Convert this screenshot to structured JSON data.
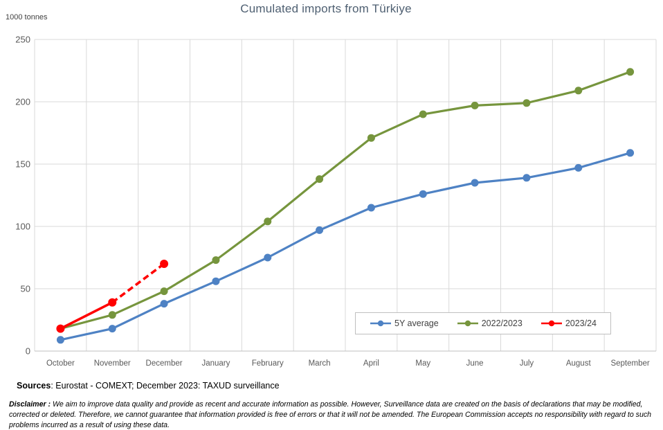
{
  "title": "Cumulated imports from Türkiye",
  "units_label": "1000 tonnes",
  "source_note": {
    "label": "Sources",
    "text": ": Eurostat - COMEXT; December 2023: TAXUD surveillance"
  },
  "disclaimer": {
    "label": "Disclaimer :",
    "text": " We aim to improve data quality and provide as recent and accurate information as possible. However, Surveillance data are created on the basis of declarations that may be modified, corrected or deleted. Therefore, we cannot guarantee that information provided is free of errors or that it will not be amended. The European Commission accepts no responsibility with regard to such problems incurred as a result of using these data."
  },
  "colors": {
    "gridline": "#D9D9D9",
    "axis_line": "#BFBFBF",
    "tick_label": "#595959",
    "title": "#4E5F71",
    "legend_border": "#BFBFBF",
    "series_blue": "#4E82C4",
    "series_green": "#76953D",
    "series_red": "#FF0000"
  },
  "chart_data": {
    "type": "line",
    "title": "Cumulated imports from Türkiye",
    "ylabel": "1000 tonnes",
    "xlabel": "",
    "ylim": [
      0,
      250
    ],
    "ytick_interval": 50,
    "grid": true,
    "legend_position": "inside-bottom-right",
    "categories": [
      "October",
      "November",
      "December",
      "January",
      "February",
      "March",
      "April",
      "May",
      "June",
      "July",
      "August",
      "September"
    ],
    "series": [
      {
        "name": "5Y average",
        "color": "#4E82C4",
        "marker": "circle",
        "line_width": 3.2,
        "marker_radius": 5.5,
        "values": [
          9,
          18,
          38,
          56,
          75,
          97,
          115,
          126,
          135,
          139,
          147,
          159
        ]
      },
      {
        "name": "2022/2023",
        "color": "#76953D",
        "marker": "circle",
        "line_width": 3.2,
        "marker_radius": 5.5,
        "values": [
          18,
          29,
          48,
          73,
          104,
          138,
          171,
          190,
          197,
          199,
          209,
          224
        ]
      },
      {
        "name": "2023/24",
        "color": "#FF0000",
        "marker": "circle",
        "line_width": 3.6,
        "marker_radius": 6,
        "dashed_from_index": 1,
        "dash_pattern": "9 5",
        "values": [
          18,
          39,
          70,
          null,
          null,
          null,
          null,
          null,
          null,
          null,
          null,
          null
        ]
      }
    ]
  }
}
